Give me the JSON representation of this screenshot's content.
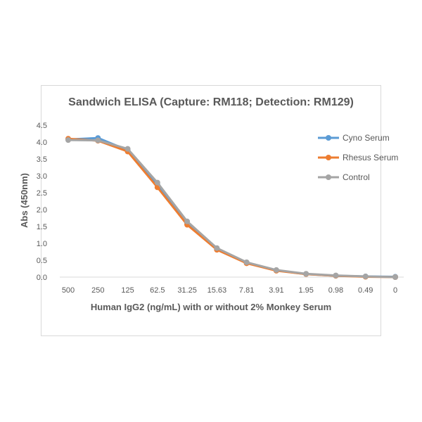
{
  "chart_data": {
    "type": "line",
    "title": "Sandwich ELISA (Capture: RM118; Detection: RM129)",
    "xlabel": "Human IgG2 (ng/mL) with or without 2% Monkey Serum",
    "ylabel": "Abs (450nm)",
    "categories": [
      "500",
      "250",
      "125",
      "62.5",
      "31.25",
      "15.63",
      "7.81",
      "3.91",
      "1.95",
      "0.98",
      "0.49",
      "0"
    ],
    "ylim": [
      0,
      4.5
    ],
    "yticks": [
      "0.0",
      "0.5",
      "1.0",
      "1.5",
      "2.0",
      "2.5",
      "3.0",
      "3.5",
      "4.0",
      "4.5"
    ],
    "grid": false,
    "legend_position": "right",
    "series": [
      {
        "name": "Cyno Serum",
        "color": "#5b9bd5",
        "values": [
          4.08,
          4.12,
          3.76,
          2.74,
          1.58,
          0.83,
          0.42,
          0.2,
          0.09,
          0.04,
          0.02,
          0.01
        ]
      },
      {
        "name": "Rhesus Serum",
        "color": "#ed7d31",
        "values": [
          4.1,
          4.04,
          3.72,
          2.66,
          1.55,
          0.81,
          0.41,
          0.19,
          0.09,
          0.04,
          0.01,
          0.0
        ]
      },
      {
        "name": "Control",
        "color": "#a5a5a5",
        "values": [
          4.06,
          4.05,
          3.8,
          2.8,
          1.65,
          0.86,
          0.44,
          0.21,
          0.1,
          0.05,
          0.02,
          0.0
        ]
      }
    ]
  }
}
